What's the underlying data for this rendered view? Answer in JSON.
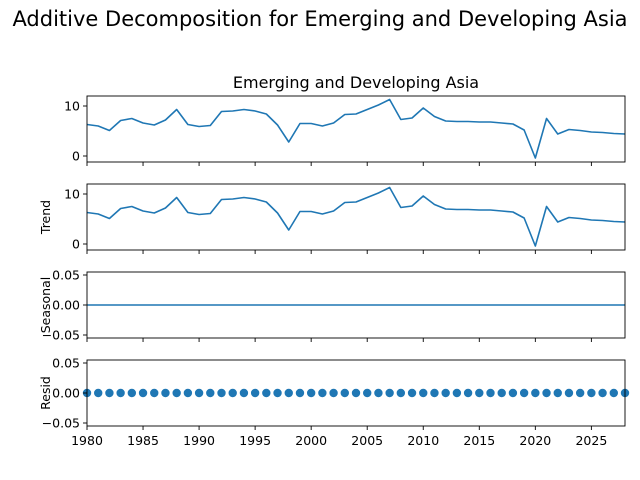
{
  "suptitle": "Additive Decomposition for Emerging and Developing Asia",
  "chart_data": [
    {
      "type": "line",
      "title": "Emerging and Developing Asia",
      "ylabel": "",
      "x": [
        1980,
        1981,
        1982,
        1983,
        1984,
        1985,
        1986,
        1987,
        1988,
        1989,
        1990,
        1991,
        1992,
        1993,
        1994,
        1995,
        1996,
        1997,
        1998,
        1999,
        2000,
        2001,
        2002,
        2003,
        2004,
        2005,
        2006,
        2007,
        2008,
        2009,
        2010,
        2011,
        2012,
        2013,
        2014,
        2015,
        2016,
        2017,
        2018,
        2019,
        2020,
        2021,
        2022,
        2023,
        2024,
        2025,
        2026,
        2027,
        2028
      ],
      "values": [
        6.3,
        6.0,
        5.1,
        7.1,
        7.5,
        6.6,
        6.2,
        7.2,
        9.3,
        6.3,
        5.9,
        6.1,
        8.9,
        9.0,
        9.3,
        9.0,
        8.4,
        6.2,
        2.8,
        6.5,
        6.5,
        6.0,
        6.6,
        8.3,
        8.4,
        9.3,
        10.2,
        11.3,
        7.3,
        7.6,
        9.6,
        7.9,
        7.0,
        6.9,
        6.9,
        6.8,
        6.8,
        6.6,
        6.4,
        5.2,
        -0.4,
        7.5,
        4.4,
        5.3,
        5.1,
        4.8,
        4.7,
        4.5,
        4.4
      ],
      "ylim": [
        -1.2,
        12.0
      ],
      "yticks": [
        "0",
        "10"
      ],
      "ytick_values": [
        0,
        10
      ]
    },
    {
      "type": "line",
      "title": "",
      "ylabel": "Trend",
      "x": [
        1980,
        1981,
        1982,
        1983,
        1984,
        1985,
        1986,
        1987,
        1988,
        1989,
        1990,
        1991,
        1992,
        1993,
        1994,
        1995,
        1996,
        1997,
        1998,
        1999,
        2000,
        2001,
        2002,
        2003,
        2004,
        2005,
        2006,
        2007,
        2008,
        2009,
        2010,
        2011,
        2012,
        2013,
        2014,
        2015,
        2016,
        2017,
        2018,
        2019,
        2020,
        2021,
        2022,
        2023,
        2024,
        2025,
        2026,
        2027,
        2028
      ],
      "values": [
        6.3,
        6.0,
        5.1,
        7.1,
        7.5,
        6.6,
        6.2,
        7.2,
        9.3,
        6.3,
        5.9,
        6.1,
        8.9,
        9.0,
        9.3,
        9.0,
        8.4,
        6.2,
        2.8,
        6.5,
        6.5,
        6.0,
        6.6,
        8.3,
        8.4,
        9.3,
        10.2,
        11.3,
        7.3,
        7.6,
        9.6,
        7.9,
        7.0,
        6.9,
        6.9,
        6.8,
        6.8,
        6.6,
        6.4,
        5.2,
        -0.4,
        7.5,
        4.4,
        5.3,
        5.1,
        4.8,
        4.7,
        4.5,
        4.4
      ],
      "ylim": [
        -1.2,
        12.0
      ],
      "yticks": [
        "0",
        "10"
      ],
      "ytick_values": [
        0,
        10
      ]
    },
    {
      "type": "line",
      "title": "",
      "ylabel": "Seasonal",
      "x": [
        1980,
        1981,
        1982,
        1983,
        1984,
        1985,
        1986,
        1987,
        1988,
        1989,
        1990,
        1991,
        1992,
        1993,
        1994,
        1995,
        1996,
        1997,
        1998,
        1999,
        2000,
        2001,
        2002,
        2003,
        2004,
        2005,
        2006,
        2007,
        2008,
        2009,
        2010,
        2011,
        2012,
        2013,
        2014,
        2015,
        2016,
        2017,
        2018,
        2019,
        2020,
        2021,
        2022,
        2023,
        2024,
        2025,
        2026,
        2027,
        2028
      ],
      "values": [
        0,
        0,
        0,
        0,
        0,
        0,
        0,
        0,
        0,
        0,
        0,
        0,
        0,
        0,
        0,
        0,
        0,
        0,
        0,
        0,
        0,
        0,
        0,
        0,
        0,
        0,
        0,
        0,
        0,
        0,
        0,
        0,
        0,
        0,
        0,
        0,
        0,
        0,
        0,
        0,
        0,
        0,
        0,
        0,
        0,
        0,
        0,
        0,
        0
      ],
      "ylim": [
        -0.055,
        0.055
      ],
      "yticks": [
        "−0.05",
        "0.00",
        "0.05"
      ],
      "ytick_values": [
        -0.05,
        0,
        0.05
      ]
    },
    {
      "type": "scatter",
      "title": "",
      "ylabel": "Resid",
      "x": [
        1980,
        1981,
        1982,
        1983,
        1984,
        1985,
        1986,
        1987,
        1988,
        1989,
        1990,
        1991,
        1992,
        1993,
        1994,
        1995,
        1996,
        1997,
        1998,
        1999,
        2000,
        2001,
        2002,
        2003,
        2004,
        2005,
        2006,
        2007,
        2008,
        2009,
        2010,
        2011,
        2012,
        2013,
        2014,
        2015,
        2016,
        2017,
        2018,
        2019,
        2020,
        2021,
        2022,
        2023,
        2024,
        2025,
        2026,
        2027,
        2028
      ],
      "values": [
        0,
        0,
        0,
        0,
        0,
        0,
        0,
        0,
        0,
        0,
        0,
        0,
        0,
        0,
        0,
        0,
        0,
        0,
        0,
        0,
        0,
        0,
        0,
        0,
        0,
        0,
        0,
        0,
        0,
        0,
        0,
        0,
        0,
        0,
        0,
        0,
        0,
        0,
        0,
        0,
        0,
        0,
        0,
        0,
        0,
        0,
        0,
        0,
        0
      ],
      "ylim": [
        -0.055,
        0.055
      ],
      "yticks": [
        "−0.05",
        "0.00",
        "0.05"
      ],
      "ytick_values": [
        -0.05,
        0,
        0.05
      ]
    }
  ],
  "xaxis": {
    "xlim": [
      1980,
      2028
    ],
    "xticks": [
      "1980",
      "1985",
      "1990",
      "1995",
      "2000",
      "2005",
      "2010",
      "2015",
      "2020",
      "2025"
    ],
    "xtick_values": [
      1980,
      1985,
      1990,
      1995,
      2000,
      2005,
      2010,
      2015,
      2020,
      2025
    ]
  },
  "colors": {
    "series": "#1f77b4",
    "axes": "#000000"
  }
}
